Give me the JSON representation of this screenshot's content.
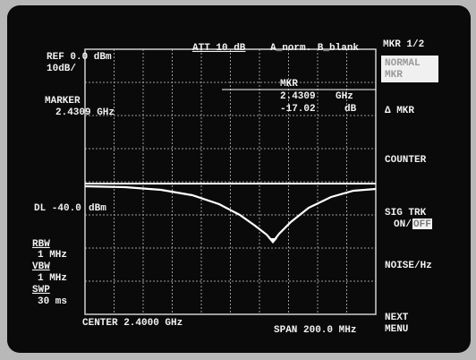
{
  "header": {
    "ref": "REF 0.0 dBm",
    "scale": "10dB/",
    "att": "ATT 10 dB",
    "trace_mode": "A_norm. B_blank"
  },
  "marker": {
    "label": "MARKER",
    "freq": "2.4309 GHz"
  },
  "readout": {
    "title": "MKR",
    "freq": "2.4309",
    "freq_unit": "GHz",
    "level": "-17.02",
    "level_unit": "dB"
  },
  "display_line": {
    "level": "DL -40.0",
    "unit": "dBm"
  },
  "settings": {
    "rbw_label": "RBW",
    "rbw": "1 MHz",
    "vbw_label": "VBW",
    "vbw": "1 MHz",
    "swp_label": "SWP",
    "swp": "30 ms"
  },
  "footer": {
    "center": "CENTER 2.4000 GHz",
    "span": "SPAN 200.0 MHz"
  },
  "softkeys": {
    "page": "MKR 1/2",
    "normal": "NORMAL",
    "normal_sub": "MKR",
    "delta": "Δ MKR",
    "counter": "COUNTER",
    "sig_trk": "SIG TRK",
    "on": "ON/",
    "off": "OFF",
    "noise": "NOISE/Hz",
    "next": "NEXT",
    "menu": "MENU"
  }
}
